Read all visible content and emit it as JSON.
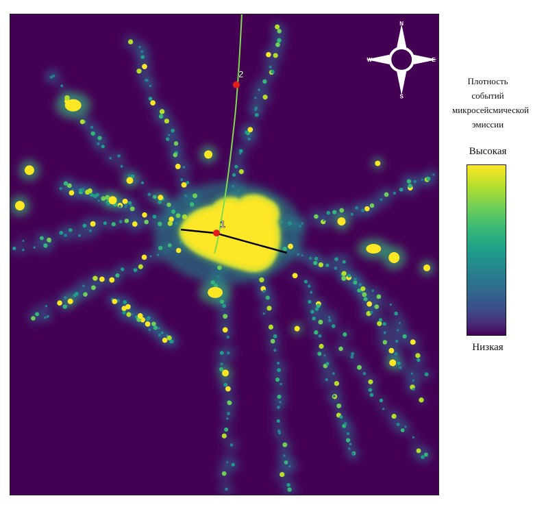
{
  "legend": {
    "title_lines": [
      "Плотность",
      "событий",
      "микросейсмической",
      "эмиссии"
    ],
    "high": "Высокая",
    "low": "Низкая",
    "colormap": [
      "#440154",
      "#3e4989",
      "#26828e",
      "#1f9e89",
      "#35b779",
      "#6ece58",
      "#b5de2b",
      "#fde725"
    ]
  },
  "compass": {
    "n": "N",
    "s": "S",
    "e": "E",
    "w": "W"
  },
  "markers": [
    {
      "label": "1",
      "color": "#e41a1c"
    },
    {
      "label": "2",
      "color": "#e41a1c"
    }
  ],
  "lines": {
    "green": "#7ddc4f",
    "black": "#000000"
  },
  "background_color": "#440154"
}
